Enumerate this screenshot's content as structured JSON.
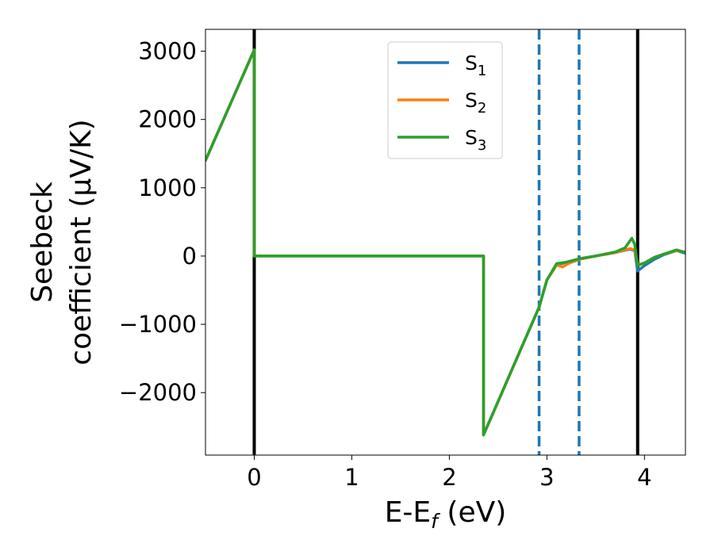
{
  "chart_data": {
    "type": "line",
    "xlabel_parts": [
      "E-E",
      "f",
      " (eV)"
    ],
    "ylabel_lines": [
      "Seebeck",
      "coefficient  (μV/K)"
    ],
    "xlim": [
      -0.5,
      4.42
    ],
    "ylim": [
      -2915,
      3320
    ],
    "xticks": [
      0,
      1,
      2,
      3,
      4
    ],
    "yticks": [
      -2000,
      -1000,
      0,
      1000,
      2000,
      3000
    ],
    "xtick_labels": [
      "0",
      "1",
      "2",
      "3",
      "4"
    ],
    "ytick_labels": [
      "−2000",
      "−1000",
      "0",
      "1000",
      "2000",
      "3000"
    ],
    "legend_location": "upper center",
    "vertical_lines": [
      {
        "x": 0.0,
        "style": "solid",
        "color": "#000000"
      },
      {
        "x": 3.93,
        "style": "solid",
        "color": "#000000"
      },
      {
        "x": 2.92,
        "style": "dashed",
        "color": "#1f77b4"
      },
      {
        "x": 3.33,
        "style": "dashed",
        "color": "#1f77b4"
      }
    ],
    "series": [
      {
        "name": [
          "S",
          "1"
        ],
        "color": "#1f77b4",
        "x": [
          -0.5,
          0.0,
          0.0,
          2.35,
          2.35,
          2.92,
          3.0,
          3.1,
          3.2,
          3.33,
          3.5,
          3.7,
          3.85,
          3.9,
          3.93,
          4.0,
          4.1,
          4.2,
          4.33,
          4.42
        ],
        "y": [
          1400,
          3020,
          0,
          0,
          -2620,
          -750,
          -350,
          -130,
          -90,
          -40,
          0,
          50,
          100,
          80,
          -220,
          -140,
          -50,
          20,
          80,
          40
        ]
      },
      {
        "name": [
          "S",
          "2"
        ],
        "color": "#ff7f0e",
        "x": [
          -0.5,
          0.0,
          0.0,
          2.35,
          2.35,
          2.92,
          3.0,
          3.1,
          3.16,
          3.22,
          3.33,
          3.5,
          3.7,
          3.85,
          3.9,
          3.93,
          4.0,
          4.1,
          4.2,
          4.33,
          4.42
        ],
        "y": [
          1400,
          3020,
          0,
          0,
          -2620,
          -750,
          -350,
          -130,
          -160,
          -110,
          -50,
          0,
          50,
          110,
          90,
          -130,
          -100,
          -20,
          30,
          80,
          60
        ]
      },
      {
        "name": [
          "S",
          "3"
        ],
        "color": "#2ca02c",
        "x": [
          -0.5,
          0.0,
          0.0,
          2.35,
          2.35,
          2.92,
          3.0,
          3.1,
          3.2,
          3.33,
          3.5,
          3.7,
          3.8,
          3.87,
          3.9,
          3.93,
          4.0,
          4.1,
          4.2,
          4.33,
          4.42
        ],
        "y": [
          1400,
          3020,
          0,
          0,
          -2620,
          -750,
          -350,
          -110,
          -90,
          -40,
          0,
          60,
          120,
          260,
          170,
          -140,
          -100,
          -20,
          30,
          90,
          50
        ]
      }
    ]
  }
}
